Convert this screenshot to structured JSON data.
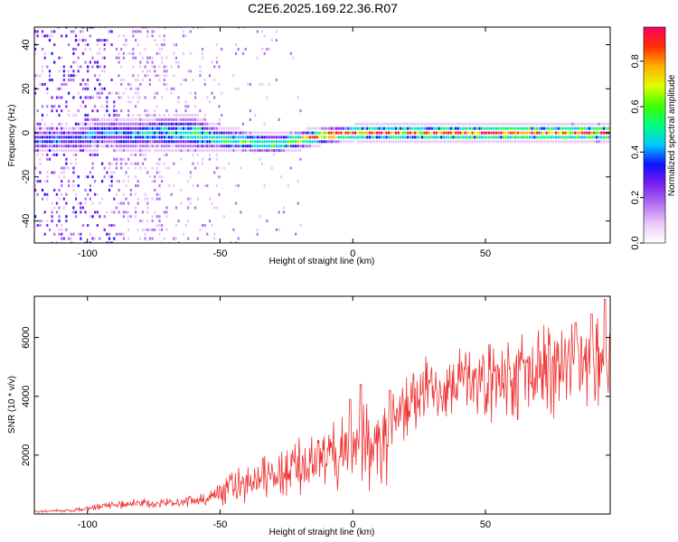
{
  "chart_data": [
    {
      "type": "heatmap",
      "title": "C2E6.2025.169.22.36.R07",
      "xlabel": "Height of straight line (km)",
      "ylabel": "Frequency (Hz)",
      "xlim": [
        -120,
        97
      ],
      "ylim": [
        -50,
        48
      ],
      "xticks": [
        -100,
        -50,
        0,
        50
      ],
      "yticks": [
        -40,
        -20,
        0,
        20,
        40
      ],
      "colorbar": {
        "label": "Normalized spectral amplitude",
        "range": [
          0,
          0.95
        ],
        "ticks": [
          "0.0",
          "0.2",
          "0.4",
          "0.6",
          "0.8"
        ],
        "tick_values": [
          0,
          0.2,
          0.4,
          0.6,
          0.8
        ],
        "colors": [
          "#ffffff",
          "#e8c8f8",
          "#b070f0",
          "#7a1ff0",
          "#1010ff",
          "#00c8ff",
          "#00ff80",
          "#40ff00",
          "#e0ff00",
          "#ffb000",
          "#ff3000",
          "#ff0060"
        ]
      },
      "ridge": {
        "description_free": true,
        "center_hz": [
          [
            -105,
            -3
          ],
          [
            -95,
            0
          ],
          [
            -85,
            -1
          ],
          [
            -75,
            0
          ],
          [
            -60,
            0
          ],
          [
            -50,
            -3
          ],
          [
            -40,
            -4
          ],
          [
            -30,
            -5
          ],
          [
            -20,
            -3
          ],
          [
            -10,
            -1
          ],
          [
            0,
            0
          ],
          [
            20,
            0
          ],
          [
            50,
            0
          ],
          [
            97,
            0
          ]
        ],
        "halfwidth_hz": [
          [
            -105,
            5
          ],
          [
            -60,
            6
          ],
          [
            -50,
            4
          ],
          [
            -20,
            3
          ],
          [
            0,
            2.5
          ],
          [
            97,
            3
          ]
        ],
        "peak_amplitude": [
          [
            -105,
            0.35
          ],
          [
            -80,
            0.45
          ],
          [
            -55,
            0.55
          ],
          [
            -30,
            0.6
          ],
          [
            -10,
            0.85
          ],
          [
            0,
            0.88
          ],
          [
            50,
            0.9
          ],
          [
            97,
            0.85
          ]
        ]
      }
    },
    {
      "type": "line",
      "title": "",
      "xlabel": "Height of straight line (km)",
      "ylabel": "SNR (10 * v/v)",
      "xlim": [
        -120,
        97
      ],
      "ylim": [
        0,
        7400
      ],
      "xticks": [
        -100,
        -50,
        0,
        50
      ],
      "yticks": [
        2000,
        4000,
        6000
      ],
      "color": "#ee3333",
      "envelope": [
        [
          -120,
          100
        ],
        [
          -105,
          150
        ],
        [
          -95,
          300
        ],
        [
          -85,
          400
        ],
        [
          -75,
          450
        ],
        [
          -65,
          500
        ],
        [
          -55,
          600
        ],
        [
          -50,
          900
        ],
        [
          -45,
          1300
        ],
        [
          -40,
          1500
        ],
        [
          -35,
          1700
        ],
        [
          -30,
          1900
        ],
        [
          -25,
          2100
        ],
        [
          -20,
          2300
        ],
        [
          -15,
          2500
        ],
        [
          -10,
          2700
        ],
        [
          -5,
          3000
        ],
        [
          0,
          3100
        ],
        [
          5,
          3200
        ],
        [
          10,
          3300
        ],
        [
          15,
          3600
        ],
        [
          20,
          4000
        ],
        [
          25,
          4300
        ],
        [
          30,
          4600
        ],
        [
          35,
          4800
        ],
        [
          40,
          4900
        ],
        [
          45,
          5000
        ],
        [
          50,
          5100
        ],
        [
          60,
          5200
        ],
        [
          70,
          5300
        ],
        [
          80,
          5400
        ],
        [
          90,
          5600
        ],
        [
          97,
          5600
        ]
      ],
      "spikes": [
        [
          95,
          7300
        ],
        [
          84,
          6500
        ],
        [
          90,
          6800
        ],
        [
          3,
          4400
        ],
        [
          14,
          4200
        ],
        [
          -1,
          3900
        ]
      ]
    }
  ]
}
